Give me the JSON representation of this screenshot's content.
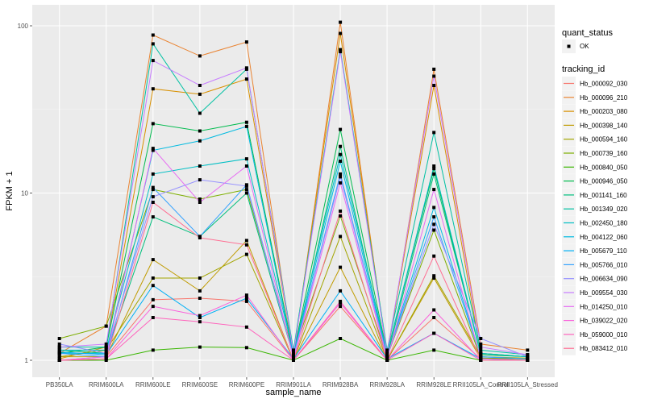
{
  "chart_data": {
    "type": "line",
    "title": "",
    "xlabel": "sample_name",
    "ylabel": "FPKM + 1",
    "yscale": "log10",
    "ylim": [
      0.9,
      120
    ],
    "y_ticks": [
      1,
      10,
      100
    ],
    "y_tick_labels": [
      "1",
      "10",
      "100"
    ],
    "categories": [
      "PB350LA",
      "RRIM600LA",
      "RRIM600LE",
      "RRIM600SE",
      "RRIM600PE",
      "RRIM901LA",
      "RRIM928BA",
      "RRIM928LA",
      "RRIM928LE",
      "RRII105LA_Control",
      "RRII105LA_Stressed"
    ],
    "grid": true,
    "legend_position": "right",
    "legend": {
      "shape_title": "quant_status",
      "shape_entries": [
        "OK"
      ],
      "color_title": "tracking_id"
    },
    "series": [
      {
        "name": "Hb_000092_030",
        "color": "#F8766D",
        "values": [
          1.0,
          1.05,
          2.3,
          2.35,
          2.25,
          1.0,
          2.1,
          1.0,
          1.8,
          1.02,
          1.0
        ]
      },
      {
        "name": "Hb_000096_210",
        "color": "#EA8331",
        "values": [
          1.1,
          1.6,
          88,
          66,
          80,
          1.05,
          105,
          1.05,
          55,
          1.25,
          1.15
        ]
      },
      {
        "name": "Hb_000203_080",
        "color": "#D89000",
        "values": [
          1.02,
          1.2,
          42,
          39,
          48,
          1.1,
          90,
          1.1,
          44,
          1.1,
          1.05
        ]
      },
      {
        "name": "Hb_000398_140",
        "color": "#C09B00",
        "values": [
          1.05,
          1.05,
          4.0,
          2.6,
          5.2,
          1.0,
          3.6,
          1.0,
          3.1,
          1.02,
          1.02
        ]
      },
      {
        "name": "Hb_000594_160",
        "color": "#A3A500",
        "values": [
          1.05,
          1.15,
          3.1,
          3.1,
          4.3,
          1.0,
          5.5,
          1.0,
          3.2,
          1.05,
          1.03
        ]
      },
      {
        "name": "Hb_000739_160",
        "color": "#7CAE00",
        "values": [
          1.35,
          1.6,
          10.5,
          9.2,
          10.5,
          1.1,
          7.3,
          1.05,
          6.0,
          1.03,
          1.02
        ]
      },
      {
        "name": "Hb_000840_050",
        "color": "#39B600",
        "values": [
          1.0,
          1.0,
          1.15,
          1.2,
          1.19,
          1.0,
          1.35,
          1.0,
          1.15,
          1.0,
          1.0
        ]
      },
      {
        "name": "Hb_000946_050",
        "color": "#00BB4E",
        "values": [
          1.1,
          1.2,
          26,
          23.5,
          26.5,
          1.1,
          24,
          1.1,
          14,
          1.08,
          1.05
        ]
      },
      {
        "name": "Hb_001141_160",
        "color": "#00BF7D",
        "values": [
          1.15,
          1.1,
          7.2,
          5.5,
          10,
          1.05,
          19,
          1.05,
          13,
          1.1,
          1.05
        ]
      },
      {
        "name": "Hb_001349_020",
        "color": "#00C1A3",
        "values": [
          1.2,
          1.2,
          78,
          30,
          55,
          1.15,
          72,
          1.15,
          23,
          1.15,
          1.08
        ]
      },
      {
        "name": "Hb_002450_180",
        "color": "#00BFC4",
        "values": [
          1.15,
          1.15,
          13,
          14.5,
          16,
          1.1,
          17,
          1.1,
          14.5,
          1.1,
          1.05
        ]
      },
      {
        "name": "Hb_004122_060",
        "color": "#00BAE0",
        "values": [
          1.1,
          1.1,
          18,
          20.5,
          25,
          1.05,
          15.5,
          1.05,
          8.2,
          1.05,
          1.02
        ]
      },
      {
        "name": "Hb_005679_110",
        "color": "#00B0F6",
        "values": [
          1.12,
          1.08,
          2.8,
          1.8,
          2.35,
          1.02,
          2.6,
          1.02,
          1.45,
          1.02,
          1.0
        ]
      },
      {
        "name": "Hb_005766_010",
        "color": "#35A2FF",
        "values": [
          1.1,
          1.05,
          10.8,
          5.5,
          11.2,
          1.05,
          13,
          1.05,
          7.2,
          1.05,
          1.02
        ]
      },
      {
        "name": "Hb_006634_090",
        "color": "#9590FF",
        "values": [
          1.25,
          1.1,
          9.5,
          12,
          11,
          1.05,
          12.5,
          1.05,
          6.5,
          1.35,
          1.05
        ]
      },
      {
        "name": "Hb_009554_030",
        "color": "#C77CFF",
        "values": [
          1.2,
          1.25,
          62,
          44,
          56,
          1.1,
          70,
          1.1,
          50,
          1.2,
          1.08
        ]
      },
      {
        "name": "Hb_014250_010",
        "color": "#E76BF3",
        "values": [
          1.0,
          1.05,
          18.5,
          8.8,
          14.5,
          1.02,
          11.5,
          1.02,
          10.5,
          1.02,
          1.0
        ]
      },
      {
        "name": "Hb_039022_020",
        "color": "#FA62DB",
        "values": [
          1.0,
          1.02,
          2.1,
          1.85,
          2.45,
          1.0,
          2.2,
          1.0,
          2.0,
          1.0,
          1.0
        ]
      },
      {
        "name": "Hb_059000_010",
        "color": "#FF62BC",
        "values": [
          1.0,
          1.02,
          1.8,
          1.7,
          1.58,
          1.0,
          2.25,
          1.0,
          1.45,
          1.0,
          1.0
        ]
      },
      {
        "name": "Hb_083412_010",
        "color": "#FF6C91",
        "values": [
          1.0,
          1.02,
          8.8,
          5.4,
          4.9,
          1.0,
          7.8,
          1.0,
          4.2,
          1.0,
          1.0
        ]
      }
    ]
  }
}
